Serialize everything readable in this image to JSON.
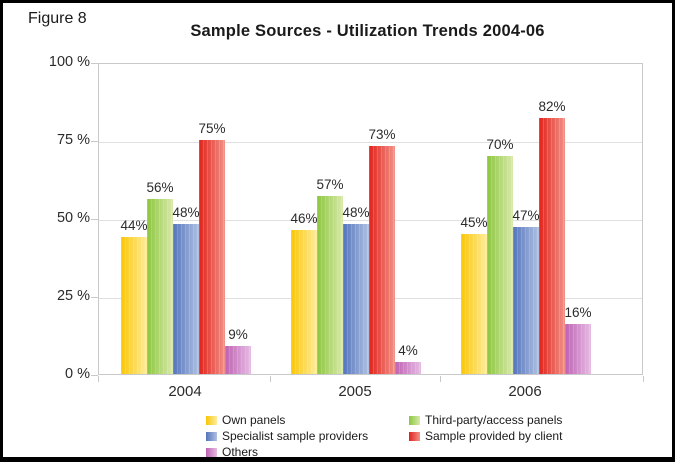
{
  "figure_label": "Figure 8",
  "chart_data": {
    "type": "bar",
    "title": "Sample Sources - Utilization Trends 2004-06",
    "categories": [
      "2004",
      "2005",
      "2006"
    ],
    "series": [
      {
        "name": "Own panels",
        "values": [
          44,
          46,
          45
        ],
        "color": "#f9c606",
        "color_light": "#feec9e"
      },
      {
        "name": "Third-party/access panels",
        "values": [
          56,
          57,
          70
        ],
        "color": "#8cc63f",
        "color_light": "#d9e9ac"
      },
      {
        "name": "Specialist sample providers",
        "values": [
          48,
          48,
          47
        ],
        "color": "#5474bc",
        "color_light": "#afc1e2"
      },
      {
        "name": "Sample provided by client",
        "values": [
          75,
          73,
          82
        ],
        "color": "#e0231b",
        "color_light": "#f19289"
      },
      {
        "name": "Others",
        "values": [
          9,
          4,
          16
        ],
        "color": "#be62b3",
        "color_light": "#e6bce3"
      }
    ],
    "value_suffix": "%",
    "y_ticks": [
      "100 %",
      "75 %",
      "50 %",
      "25 %",
      "0 %"
    ],
    "ylim": [
      0,
      100
    ],
    "grid": true,
    "legend_position": "bottom",
    "legend_columns": [
      [
        0,
        2,
        4
      ],
      [
        1,
        3
      ]
    ],
    "gridline_color": "#e0e0e0",
    "axis_color": "#c9c9c9"
  }
}
